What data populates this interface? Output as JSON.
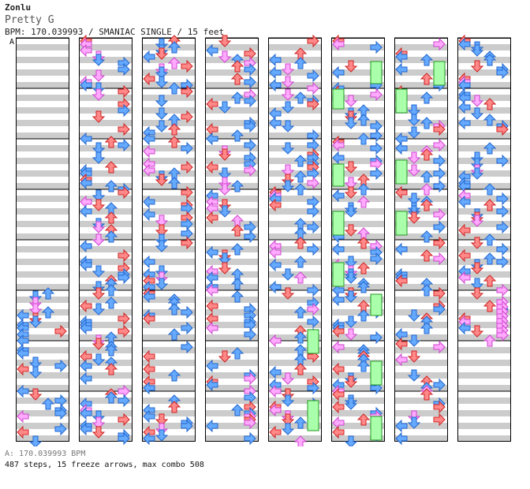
{
  "header": {
    "artist": "Zonlu",
    "song_title": "Pretty G",
    "chart_info": "BPM: 170.039993 / SMANIAC SINGLE / 15 feet",
    "bpm_marker": "A"
  },
  "footer": {
    "bpm_line": "A: 170.039993 BPM",
    "stats_line": "487 steps, 15 freeze arrows, max combo 508"
  },
  "colors": {
    "red_arrow": "#ff8888",
    "blue_arrow": "#66aaff",
    "pink_arrow": "#ffaaff",
    "freeze": "#aaffaa",
    "stripe": "#cccccc"
  },
  "chart_data": {
    "type": "table",
    "title": "Pretty G — SMANIAC SINGLE",
    "columns": 8,
    "measures_per_column": 8,
    "total_steps": 487,
    "freeze_arrows": 15,
    "max_combo": 508,
    "bpm": 170.039993
  }
}
